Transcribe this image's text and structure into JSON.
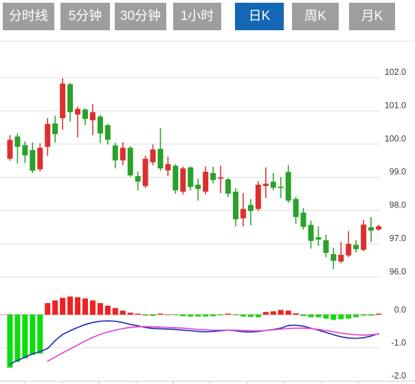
{
  "tabs": [
    {
      "id": "minute-line",
      "label": "分时线",
      "active": false
    },
    {
      "id": "5min",
      "label": "5分钟",
      "active": false
    },
    {
      "id": "30min",
      "label": "30分钟",
      "active": false
    },
    {
      "id": "1hour",
      "label": "1小时",
      "active": false
    },
    {
      "id": "daily-k",
      "label": "日K",
      "active": true
    },
    {
      "id": "weekly-k",
      "label": "周K",
      "active": false
    },
    {
      "id": "monthly-k",
      "label": "月K",
      "active": false
    }
  ],
  "colors": {
    "tab_bg": "#9e9e9e",
    "tab_active_bg": "#1467b5",
    "tab_text": "#ffffff",
    "candle_up": "#dc3030",
    "candle_down": "#2aa12a",
    "hist_up": "#ee2222",
    "hist_down": "#0cdd0c",
    "dif_line": "#2733b3",
    "dea_line": "#e64ad2",
    "grid": "#dcdcdc",
    "axis_line": "#c8c8c8",
    "zero_line": "#e08484",
    "axis_text": "#3c3c3c"
  },
  "chart_data": {
    "type": "candlestick-with-macd",
    "title": "",
    "price_axis": {
      "ticks": [
        102.0,
        101.0,
        100.0,
        99.0,
        98.0,
        97.0,
        96.0
      ],
      "tick_labels": [
        "102.0",
        "101.0",
        "100.0",
        "99.0",
        "98.0",
        "97.0",
        "96.0"
      ],
      "position": "right",
      "grid": true
    },
    "macd_axis": {
      "ticks": [
        0.0,
        -1.0,
        -2.0
      ],
      "tick_labels": [
        "0.0",
        "-1.0",
        "-2.0"
      ],
      "position": "right"
    },
    "candles_ohlc": [
      [
        99.56,
        100.27,
        99.5,
        100.13
      ],
      [
        100.23,
        100.32,
        99.42,
        99.92
      ],
      [
        99.97,
        100.08,
        99.43,
        99.66
      ],
      [
        99.82,
        100.05,
        99.13,
        99.2
      ],
      [
        99.24,
        100.03,
        99.18,
        99.89
      ],
      [
        99.92,
        100.78,
        99.65,
        100.61
      ],
      [
        100.62,
        100.85,
        100.04,
        100.3
      ],
      [
        100.78,
        101.98,
        100.44,
        101.82
      ],
      [
        101.8,
        101.84,
        100.68,
        100.96
      ],
      [
        100.89,
        101.13,
        100.2,
        101.06
      ],
      [
        101.04,
        101.08,
        100.57,
        100.76
      ],
      [
        100.72,
        101.2,
        100.27,
        100.96
      ],
      [
        100.83,
        100.88,
        100.03,
        100.32
      ],
      [
        100.57,
        100.61,
        99.99,
        100.13
      ],
      [
        99.96,
        100.04,
        99.27,
        99.51
      ],
      [
        99.51,
        100.06,
        99.37,
        99.89
      ],
      [
        99.89,
        99.94,
        99.02,
        99.06
      ],
      [
        99.04,
        99.18,
        98.61,
        98.87
      ],
      [
        98.74,
        99.65,
        98.68,
        99.56
      ],
      [
        99.45,
        99.99,
        99.37,
        99.84
      ],
      [
        99.86,
        100.48,
        99.2,
        99.27
      ],
      [
        99.21,
        99.62,
        99.04,
        99.4
      ],
      [
        99.35,
        99.4,
        98.51,
        98.61
      ],
      [
        98.57,
        99.33,
        98.49,
        99.27
      ],
      [
        99.3,
        99.33,
        98.61,
        98.71
      ],
      [
        98.78,
        98.96,
        98.3,
        98.65
      ],
      [
        98.57,
        99.33,
        98.49,
        99.17
      ],
      [
        99.13,
        99.32,
        98.82,
        98.92
      ],
      [
        98.96,
        99.35,
        98.53,
        99.0
      ],
      [
        98.94,
        98.98,
        98.41,
        98.51
      ],
      [
        98.57,
        98.68,
        97.53,
        97.74
      ],
      [
        97.77,
        98.53,
        97.53,
        98.05
      ],
      [
        98.17,
        98.35,
        97.56,
        97.99
      ],
      [
        98.05,
        98.88,
        97.99,
        98.78
      ],
      [
        98.74,
        99.3,
        98.38,
        98.81
      ],
      [
        98.87,
        99.13,
        98.61,
        98.69
      ],
      [
        98.72,
        99.01,
        98.38,
        98.68
      ],
      [
        99.16,
        99.37,
        98.23,
        98.3
      ],
      [
        98.35,
        98.42,
        97.6,
        97.81
      ],
      [
        97.94,
        98.08,
        97.43,
        97.51
      ],
      [
        97.57,
        97.7,
        96.86,
        97.09
      ],
      [
        97.2,
        97.52,
        96.94,
        97.13
      ],
      [
        97.11,
        97.28,
        96.6,
        96.73
      ],
      [
        96.69,
        96.88,
        96.24,
        96.49
      ],
      [
        96.47,
        97.06,
        96.42,
        96.67
      ],
      [
        96.65,
        97.38,
        96.6,
        97.0
      ],
      [
        96.97,
        97.11,
        96.74,
        96.84
      ],
      [
        96.82,
        97.72,
        96.78,
        97.58
      ],
      [
        97.5,
        97.81,
        97.05,
        97.4
      ],
      [
        97.43,
        97.58,
        97.4,
        97.53
      ]
    ],
    "macd": {
      "histogram": [
        -1.61,
        -1.43,
        -1.33,
        -1.22,
        -1.18,
        0.35,
        0.43,
        0.51,
        0.55,
        0.53,
        0.49,
        0.43,
        0.35,
        0.27,
        0.2,
        0.12,
        0.06,
        0.03,
        -0.03,
        -0.04,
        0.03,
        0.01,
        -0.01,
        -0.05,
        -0.06,
        -0.06,
        -0.06,
        -0.05,
        -0.01,
        0.03,
        -0.02,
        -0.06,
        -0.07,
        -0.08,
        0.08,
        0.1,
        0.14,
        0.12,
        0.04,
        -0.04,
        -0.08,
        -0.08,
        -0.12,
        -0.16,
        -0.14,
        -0.12,
        -0.08,
        -0.03,
        -0.03,
        0.03
      ],
      "dif": [
        -1.5,
        -1.39,
        -1.29,
        -1.19,
        -1.12,
        -1.03,
        -0.79,
        -0.6,
        -0.49,
        -0.39,
        -0.3,
        -0.24,
        -0.2,
        -0.19,
        -0.2,
        -0.24,
        -0.3,
        -0.34,
        -0.39,
        -0.42,
        -0.43,
        -0.44,
        -0.45,
        -0.47,
        -0.49,
        -0.51,
        -0.52,
        -0.51,
        -0.49,
        -0.47,
        -0.49,
        -0.52,
        -0.53,
        -0.51,
        -0.48,
        -0.45,
        -0.41,
        -0.33,
        -0.32,
        -0.35,
        -0.41,
        -0.47,
        -0.54,
        -0.61,
        -0.67,
        -0.71,
        -0.72,
        -0.7,
        -0.65,
        -0.58
      ],
      "dea": [
        null,
        null,
        null,
        null,
        null,
        -1.41,
        -1.29,
        -1.16,
        -1.04,
        -0.92,
        -0.8,
        -0.69,
        -0.6,
        -0.53,
        -0.47,
        -0.42,
        -0.39,
        -0.37,
        -0.36,
        -0.37,
        -0.38,
        -0.39,
        -0.4,
        -0.41,
        -0.43,
        -0.45,
        -0.46,
        -0.47,
        -0.47,
        -0.47,
        -0.47,
        -0.48,
        -0.49,
        -0.49,
        -0.48,
        -0.46,
        -0.44,
        -0.42,
        -0.41,
        -0.41,
        -0.42,
        -0.45,
        -0.48,
        -0.52,
        -0.56,
        -0.59,
        -0.61,
        -0.62,
        -0.61,
        -0.59
      ]
    },
    "color_convention": "red = up (close > open), green = down — CN market style",
    "legend_position": "none"
  }
}
